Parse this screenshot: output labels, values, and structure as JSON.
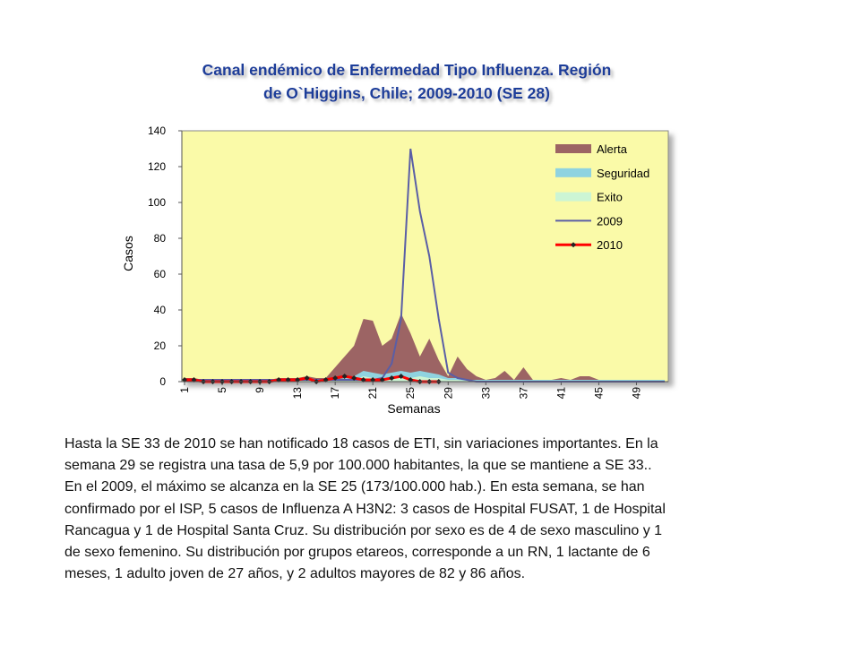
{
  "chart_data": {
    "type": "area-line",
    "title": [
      "Canal endémico de Enfermedad Tipo Influenza.  Región",
      "de O`Higgins, Chile; 2009-2010 (SE 28)"
    ],
    "y_label": "Casos",
    "x_label": "Semanas",
    "x": [
      1,
      2,
      3,
      4,
      5,
      6,
      7,
      8,
      9,
      10,
      11,
      12,
      13,
      14,
      15,
      16,
      17,
      18,
      19,
      20,
      21,
      22,
      23,
      24,
      25,
      26,
      27,
      28,
      29,
      30,
      31,
      32,
      33,
      34,
      35,
      36,
      37,
      38,
      39,
      40,
      41,
      42,
      43,
      44,
      45,
      46,
      47,
      48,
      49,
      50,
      51,
      52
    ],
    "xlim": [
      1,
      52
    ],
    "xticks": [
      1,
      5,
      9,
      13,
      17,
      21,
      25,
      29,
      33,
      37,
      41,
      45,
      49
    ],
    "ylim": [
      0,
      140
    ],
    "yticks": [
      0,
      20,
      40,
      60,
      80,
      100,
      120,
      140
    ],
    "legend": "top-right",
    "series": [
      {
        "name": "Alerta",
        "kind": "area",
        "color": "#9c6464",
        "values": [
          2,
          2,
          1,
          1,
          1,
          1,
          1,
          1,
          1,
          1,
          2,
          2,
          2,
          3,
          2,
          2,
          8,
          14,
          20,
          35,
          34,
          20,
          24,
          38,
          27,
          14,
          24,
          12,
          3,
          14,
          7,
          3,
          1,
          2,
          6,
          1,
          8,
          1,
          1,
          1,
          2,
          1,
          3,
          3,
          1,
          1,
          1,
          1,
          1,
          1,
          1,
          1
        ]
      },
      {
        "name": "Seguridad",
        "kind": "area",
        "color": "#8fd3e0",
        "values": [
          1,
          1,
          1,
          1,
          1,
          1,
          1,
          1,
          1,
          1,
          1,
          1,
          1,
          1,
          1,
          1,
          1,
          2,
          3,
          6,
          5,
          4,
          5,
          6,
          5,
          6,
          5,
          4,
          2,
          2,
          1,
          1,
          1,
          1,
          1,
          1,
          1,
          1,
          1,
          1,
          1,
          1,
          1,
          1,
          1,
          1,
          1,
          1,
          1,
          1,
          1,
          1
        ]
      },
      {
        "name": "Exito",
        "kind": "area",
        "color": "#ccf5d4",
        "values": [
          0.5,
          0.5,
          0.5,
          0.5,
          0.5,
          0.5,
          0.5,
          0.5,
          0.5,
          0.5,
          0.5,
          0.5,
          0.5,
          0.5,
          0.5,
          0.5,
          0.5,
          1,
          1,
          3,
          2,
          2,
          2,
          3,
          2,
          3,
          2,
          2,
          1,
          1,
          0.5,
          0.5,
          0.5,
          0.5,
          0.5,
          0.5,
          0.5,
          0.5,
          0.5,
          0.5,
          0.5,
          0.5,
          0.5,
          0.5,
          0.5,
          0.5,
          0.5,
          0.5,
          0.5,
          0.5,
          0.5,
          0.5
        ]
      },
      {
        "name": "2009",
        "kind": "line",
        "color": "#5a5ea6",
        "values": [
          1,
          1,
          1,
          1,
          1,
          1,
          1,
          1,
          1,
          1,
          1,
          1,
          1,
          1,
          1,
          1,
          1,
          1,
          1,
          1,
          1,
          2,
          10,
          35,
          130,
          95,
          70,
          35,
          5,
          2,
          1,
          0,
          0,
          0,
          0,
          0,
          0,
          0,
          0,
          0,
          0,
          0,
          0,
          0,
          0,
          0,
          0,
          0,
          0,
          0,
          0,
          0
        ]
      },
      {
        "name": "2010",
        "kind": "line",
        "color": "#ff0000",
        "marker": "#222222",
        "values": [
          1,
          1,
          0,
          0,
          0,
          0,
          0,
          0,
          0,
          0,
          1,
          1,
          1,
          2,
          0,
          1,
          2,
          3,
          2,
          1,
          1,
          1,
          2,
          3,
          1,
          0,
          0,
          0,
          null,
          null,
          null,
          null,
          null,
          null,
          null,
          null,
          null,
          null,
          null,
          null,
          null,
          null,
          null,
          null,
          null,
          null,
          null,
          null,
          null,
          null,
          null,
          null
        ]
      }
    ]
  },
  "paragraph": [
    "Hasta la SE 33 de 2010 se han notificado 18 casos de ETI, sin variaciones importantes.  En la",
    "semana 29 se registra una tasa de 5,9 por 100.000 habitantes, la que se mantiene a SE 33..",
    "En el 2009, el máximo se  alcanza en la  SE 25 (173/100.000 hab.).  En esta semana, se han",
    "confirmado por el ISP, 5 casos de Influenza A H3N2: 3 casos de Hospital FUSAT, 1 de Hospital",
    "Rancagua y 1 de Hospital Santa Cruz. Su distribución por sexo es de 4 de sexo masculino y 1",
    "de sexo femenino. Su distribución por grupos etareos, corresponde a un RN, 1 lactante de 6",
    "meses, 1 adulto joven de 27 años, y 2 adultos mayores de 82 y 86 años."
  ]
}
